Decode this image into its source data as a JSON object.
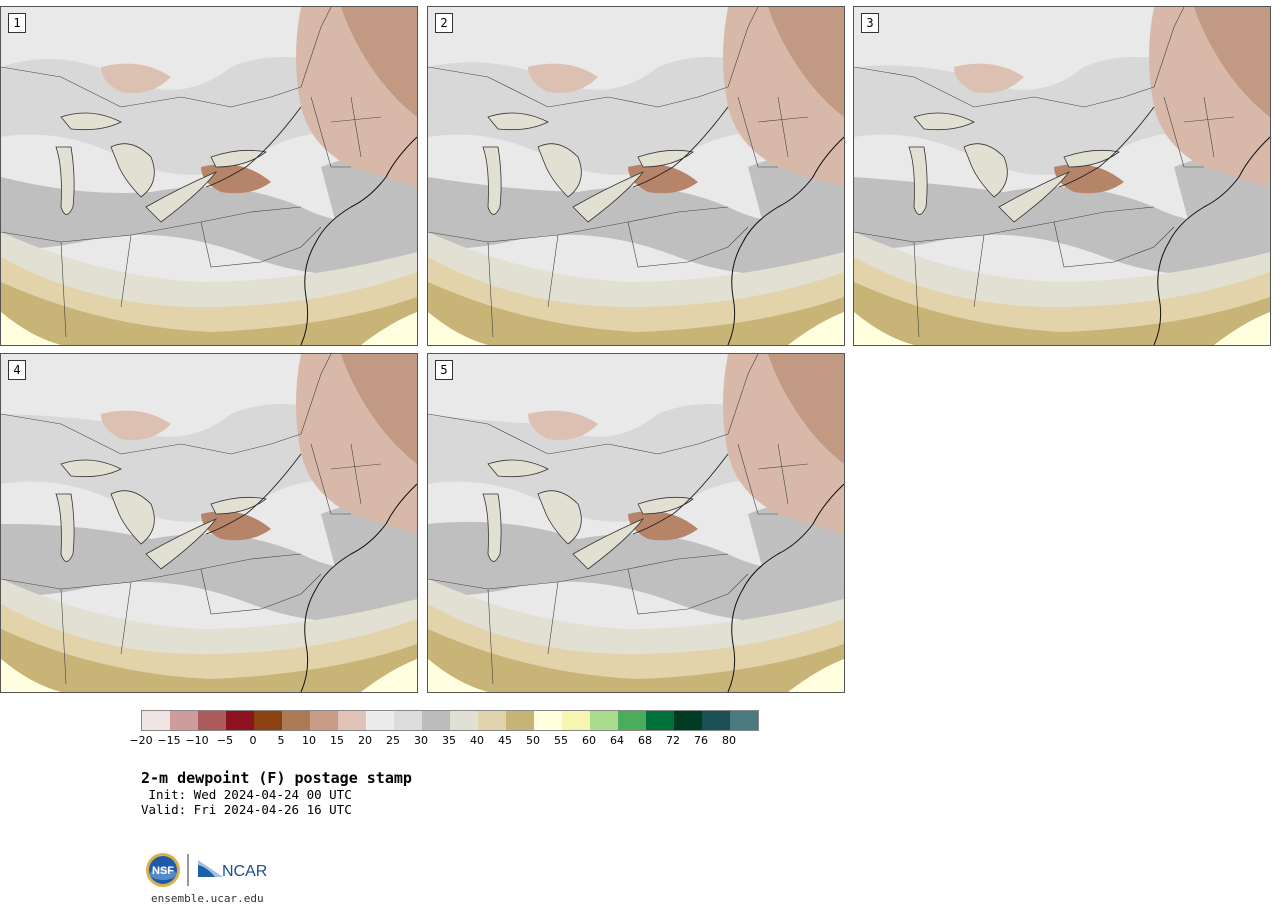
{
  "panels": [
    {
      "label": "1"
    },
    {
      "label": "2"
    },
    {
      "label": "3"
    },
    {
      "label": "4"
    },
    {
      "label": "5"
    }
  ],
  "colorbar": {
    "colors": [
      "#f1e4e4",
      "#cd9c9c",
      "#ac5a5c",
      "#8c1221",
      "#8b4210",
      "#ae7955",
      "#c89c85",
      "#dfc3b6",
      "#ececec",
      "#dcdcdc",
      "#bcbcbc",
      "#e0e0d5",
      "#e1d3ab",
      "#c9b478",
      "#ffffdf",
      "#f6f6b1",
      "#a9dd8d",
      "#4aad5b",
      "#00713a",
      "#003c23",
      "#194f55",
      "#4a797f"
    ],
    "ticks": [
      "−20",
      "−15",
      "−10",
      "−5",
      "0",
      "5",
      "10",
      "15",
      "20",
      "25",
      "30",
      "35",
      "40",
      "45",
      "50",
      "55",
      "60",
      "64",
      "68",
      "72",
      "76",
      "80"
    ]
  },
  "title": "2-m dewpoint (F) postage stamp",
  "init": " Init: Wed 2024-04-24 00 UTC",
  "valid": "Valid: Fri 2024-04-26 16 UTC",
  "logo": {
    "nsf": "NSF",
    "ncar": "NCAR"
  },
  "url": "ensemble.ucar.edu"
}
